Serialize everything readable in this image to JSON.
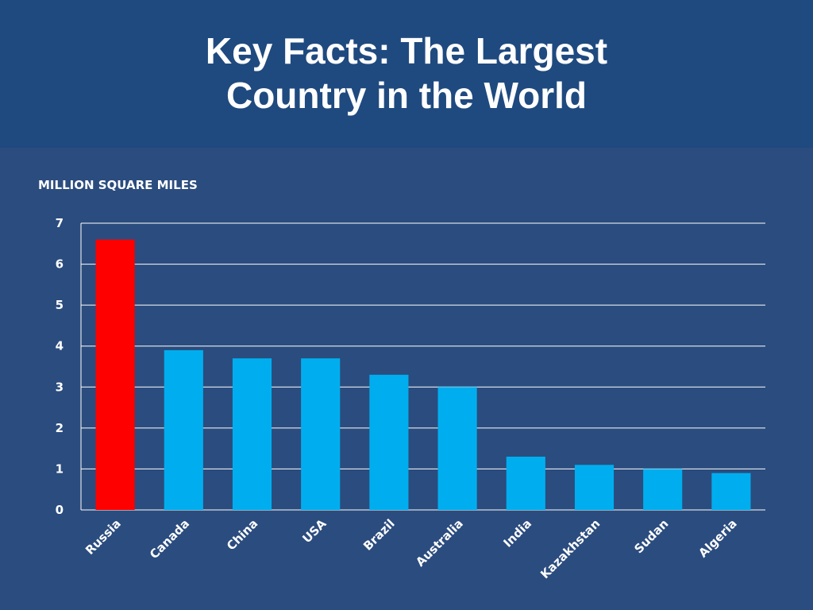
{
  "slide": {
    "title_line1": "Key Facts:  The Largest",
    "title_line2": "Country in the World"
  },
  "colors": {
    "background": "#2b4c7e",
    "title_band": "#1f4a7f",
    "highlight_bar": "#ff0000",
    "bar": "#00aeef",
    "gridline": "#ffffff"
  },
  "chart_data": {
    "type": "bar",
    "title": "",
    "ylabel": "MILLION SQUARE MILES",
    "xlabel": "",
    "categories": [
      "Russia",
      "Canada",
      "China",
      "USA",
      "Brazil",
      "Australia",
      "India",
      "Kazakhstan",
      "Sudan",
      "Algeria"
    ],
    "values": [
      6.6,
      3.9,
      3.7,
      3.7,
      3.3,
      3.0,
      1.3,
      1.1,
      1.0,
      0.9
    ],
    "highlight": [
      "Russia"
    ],
    "ylim": [
      0,
      7
    ],
    "yticks": [
      0,
      1,
      2,
      3,
      4,
      5,
      6,
      7
    ],
    "grid": true,
    "legend": "none"
  }
}
